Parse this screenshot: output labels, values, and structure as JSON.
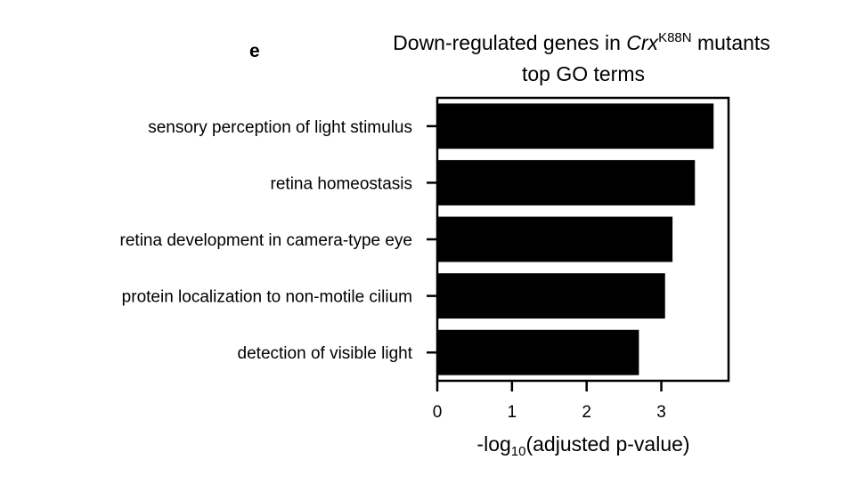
{
  "panel_label": "e",
  "title": {
    "line1_pre": "Down-regulated genes in ",
    "gene": "Crx",
    "gene_sup": "K88N",
    "line1_post": " mutants",
    "line2": "top GO terms"
  },
  "xlabel": {
    "pre": "-log",
    "sub": "10",
    "post": "(adjusted p-value)"
  },
  "chart_data": {
    "type": "bar",
    "orientation": "horizontal",
    "categories": [
      "sensory perception of light stimulus",
      "retina homeostasis",
      "retina development in camera-type eye",
      "protein localization to non-motile cilium",
      "detection of visible light"
    ],
    "values": [
      3.7,
      3.45,
      3.15,
      3.05,
      2.7
    ],
    "xlim": [
      0,
      3.9
    ],
    "xticks": [
      "0",
      "1",
      "2",
      "3"
    ],
    "bar_color": "#000000",
    "grid": false
  }
}
